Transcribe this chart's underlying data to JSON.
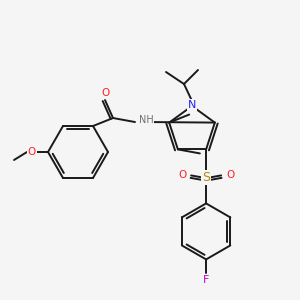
{
  "background_color": "#f5f5f5",
  "bond_color": "#1a1a1a",
  "atom_colors": {
    "N": "#2020ff",
    "O": "#ff2020",
    "S": "#b8860b",
    "F": "#cc00cc",
    "H": "#707070",
    "C": "#1a1a1a"
  },
  "figsize": [
    3.0,
    3.0
  ],
  "dpi": 100,
  "lw": 1.4,
  "fs": 7.5
}
